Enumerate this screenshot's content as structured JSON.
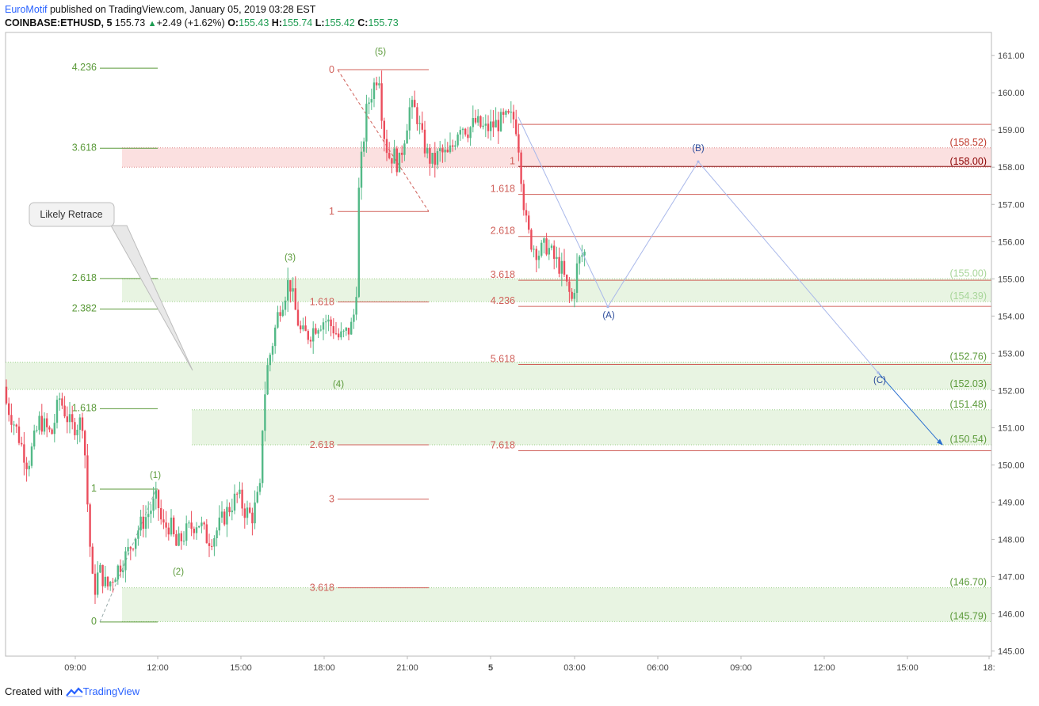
{
  "header": {
    "author": "EuroMotif",
    "published_text": " published on TradingView.com, January 05, 2019 03:28 EST",
    "symbol": "COINBASE:ETHUSD, 5",
    "last": "155.73",
    "change": "+2.49 (+1.62%)",
    "o_label": "O:",
    "o": "155.43",
    "h_label": "H:",
    "h": "155.74",
    "l_label": "L:",
    "l": "155.42",
    "c_label": "C:",
    "c": "155.73"
  },
  "footer": {
    "created_with": "Created with",
    "brand": "TradingView"
  },
  "colors": {
    "up": "#53b987",
    "down": "#eb4d5c",
    "fib_green": "#5b9a3a",
    "fib_red": "#d0605a",
    "zone_green": "#e8f4e2",
    "zone_red": "#fbe0e0",
    "wave_blue": "#6f8fd8",
    "price_blue": "#2a6fcf"
  },
  "chart_data": {
    "type": "candlestick",
    "timeframe": "5",
    "ylim": [
      144.8,
      161.2
    ],
    "y_ticks": [
      "161.00",
      "160.00",
      "159.00",
      "158.00",
      "157.00",
      "156.00",
      "155.00",
      "154.00",
      "153.00",
      "152.00",
      "151.00",
      "150.00",
      "149.00",
      "148.00",
      "147.00",
      "146.00",
      "145.00"
    ],
    "x_ticks": [
      "09:00",
      "12:00",
      "15:00",
      "18:00",
      "21:00",
      "5",
      "03:00",
      "06:00",
      "09:00",
      "12:00",
      "15:00",
      "18:"
    ],
    "price_path": [
      [
        0,
        152.1
      ],
      [
        20,
        151.0
      ],
      [
        35,
        150.0
      ],
      [
        50,
        151.2
      ],
      [
        65,
        150.8
      ],
      [
        75,
        151.8
      ],
      [
        90,
        151.0
      ],
      [
        105,
        151.2
      ],
      [
        112,
        148.3
      ],
      [
        118,
        146.5
      ],
      [
        125,
        147.2
      ],
      [
        135,
        146.7
      ],
      [
        145,
        147.1
      ],
      [
        160,
        147.6
      ],
      [
        175,
        148.3
      ],
      [
        190,
        148.8
      ],
      [
        198,
        149.1
      ],
      [
        205,
        148.3
      ],
      [
        215,
        148.4
      ],
      [
        222,
        147.8
      ],
      [
        235,
        148.2
      ],
      [
        250,
        148.5
      ],
      [
        262,
        148.0
      ],
      [
        270,
        148.1
      ],
      [
        285,
        148.7
      ],
      [
        300,
        149.2
      ],
      [
        308,
        148.8
      ],
      [
        318,
        148.6
      ],
      [
        328,
        149.3
      ],
      [
        332,
        151.5
      ],
      [
        338,
        152.7
      ],
      [
        345,
        153.4
      ],
      [
        352,
        154.2
      ],
      [
        358,
        154.5
      ],
      [
        365,
        155.0
      ],
      [
        372,
        154.2
      ],
      [
        380,
        153.5
      ],
      [
        390,
        153.5
      ],
      [
        400,
        153.8
      ],
      [
        410,
        153.9
      ],
      [
        420,
        153.7
      ],
      [
        428,
        153.4
      ],
      [
        435,
        153.5
      ],
      [
        443,
        153.7
      ],
      [
        449,
        154.3
      ],
      [
        453,
        157.5
      ],
      [
        458,
        158.6
      ],
      [
        463,
        159.6
      ],
      [
        470,
        160.1
      ],
      [
        478,
        160.6
      ],
      [
        483,
        159.1
      ],
      [
        490,
        158.3
      ],
      [
        498,
        158.3
      ],
      [
        503,
        158.0
      ],
      [
        510,
        158.8
      ],
      [
        517,
        159.6
      ],
      [
        525,
        159.5
      ],
      [
        532,
        158.8
      ],
      [
        540,
        158.3
      ],
      [
        547,
        158.1
      ],
      [
        555,
        158.4
      ],
      [
        565,
        158.3
      ],
      [
        572,
        158.6
      ],
      [
        580,
        159.2
      ],
      [
        590,
        159.0
      ],
      [
        600,
        159.2
      ],
      [
        612,
        159.0
      ],
      [
        620,
        159.1
      ],
      [
        630,
        159.2
      ],
      [
        640,
        159.3
      ],
      [
        650,
        159.3
      ],
      [
        655,
        158.5
      ],
      [
        660,
        157.2
      ],
      [
        665,
        156.3
      ],
      [
        672,
        155.9
      ],
      [
        680,
        155.7
      ],
      [
        690,
        155.9
      ],
      [
        700,
        155.5
      ],
      [
        708,
        155.3
      ],
      [
        715,
        154.8
      ],
      [
        722,
        154.4
      ],
      [
        728,
        155.3
      ],
      [
        733,
        155.6
      ],
      [
        738,
        155.7
      ]
    ],
    "annotations": {
      "fib_left": [
        {
          "label": "4.236",
          "price": 160.66
        },
        {
          "label": "3.618",
          "price": 158.51
        },
        {
          "label": "2.618",
          "price": 155.01
        },
        {
          "label": "2.382",
          "price": 154.19
        },
        {
          "label": "1.618",
          "price": 151.51
        },
        {
          "label": "1",
          "price": 149.35
        },
        {
          "label": "0",
          "price": 145.78
        }
      ],
      "fib_mid": [
        {
          "label": "0",
          "price": 160.62
        },
        {
          "label": "1",
          "price": 156.81
        },
        {
          "label": "1.618",
          "price": 154.38
        },
        {
          "label": "2.618",
          "price": 150.54
        },
        {
          "label": "3",
          "price": 149.08
        },
        {
          "label": "3.618",
          "price": 146.7
        }
      ],
      "fib_right": [
        {
          "label": "1",
          "price": 158.02
        },
        {
          "label": "1.618",
          "price": 157.27
        },
        {
          "label": "2.618",
          "price": 156.14
        },
        {
          "label": "3.618",
          "price": 154.96
        },
        {
          "label": "4.236",
          "price": 154.26
        },
        {
          "label": "5.618",
          "price": 152.7
        },
        {
          "label": "7.618",
          "price": 150.38
        }
      ],
      "right_labels": [
        "(158.52)",
        "(158.00)",
        "(155.00)",
        "(154.39)",
        "(152.76)",
        "(152.03)",
        "(151.48)",
        "(150.54)",
        "(146.70)",
        "(145.79)"
      ],
      "waves": [
        "(1)",
        "(2)",
        "(3)",
        "(4)",
        "(5)",
        "(A)",
        "(B)",
        "(C)"
      ],
      "callout": "Likely Retrace"
    }
  }
}
